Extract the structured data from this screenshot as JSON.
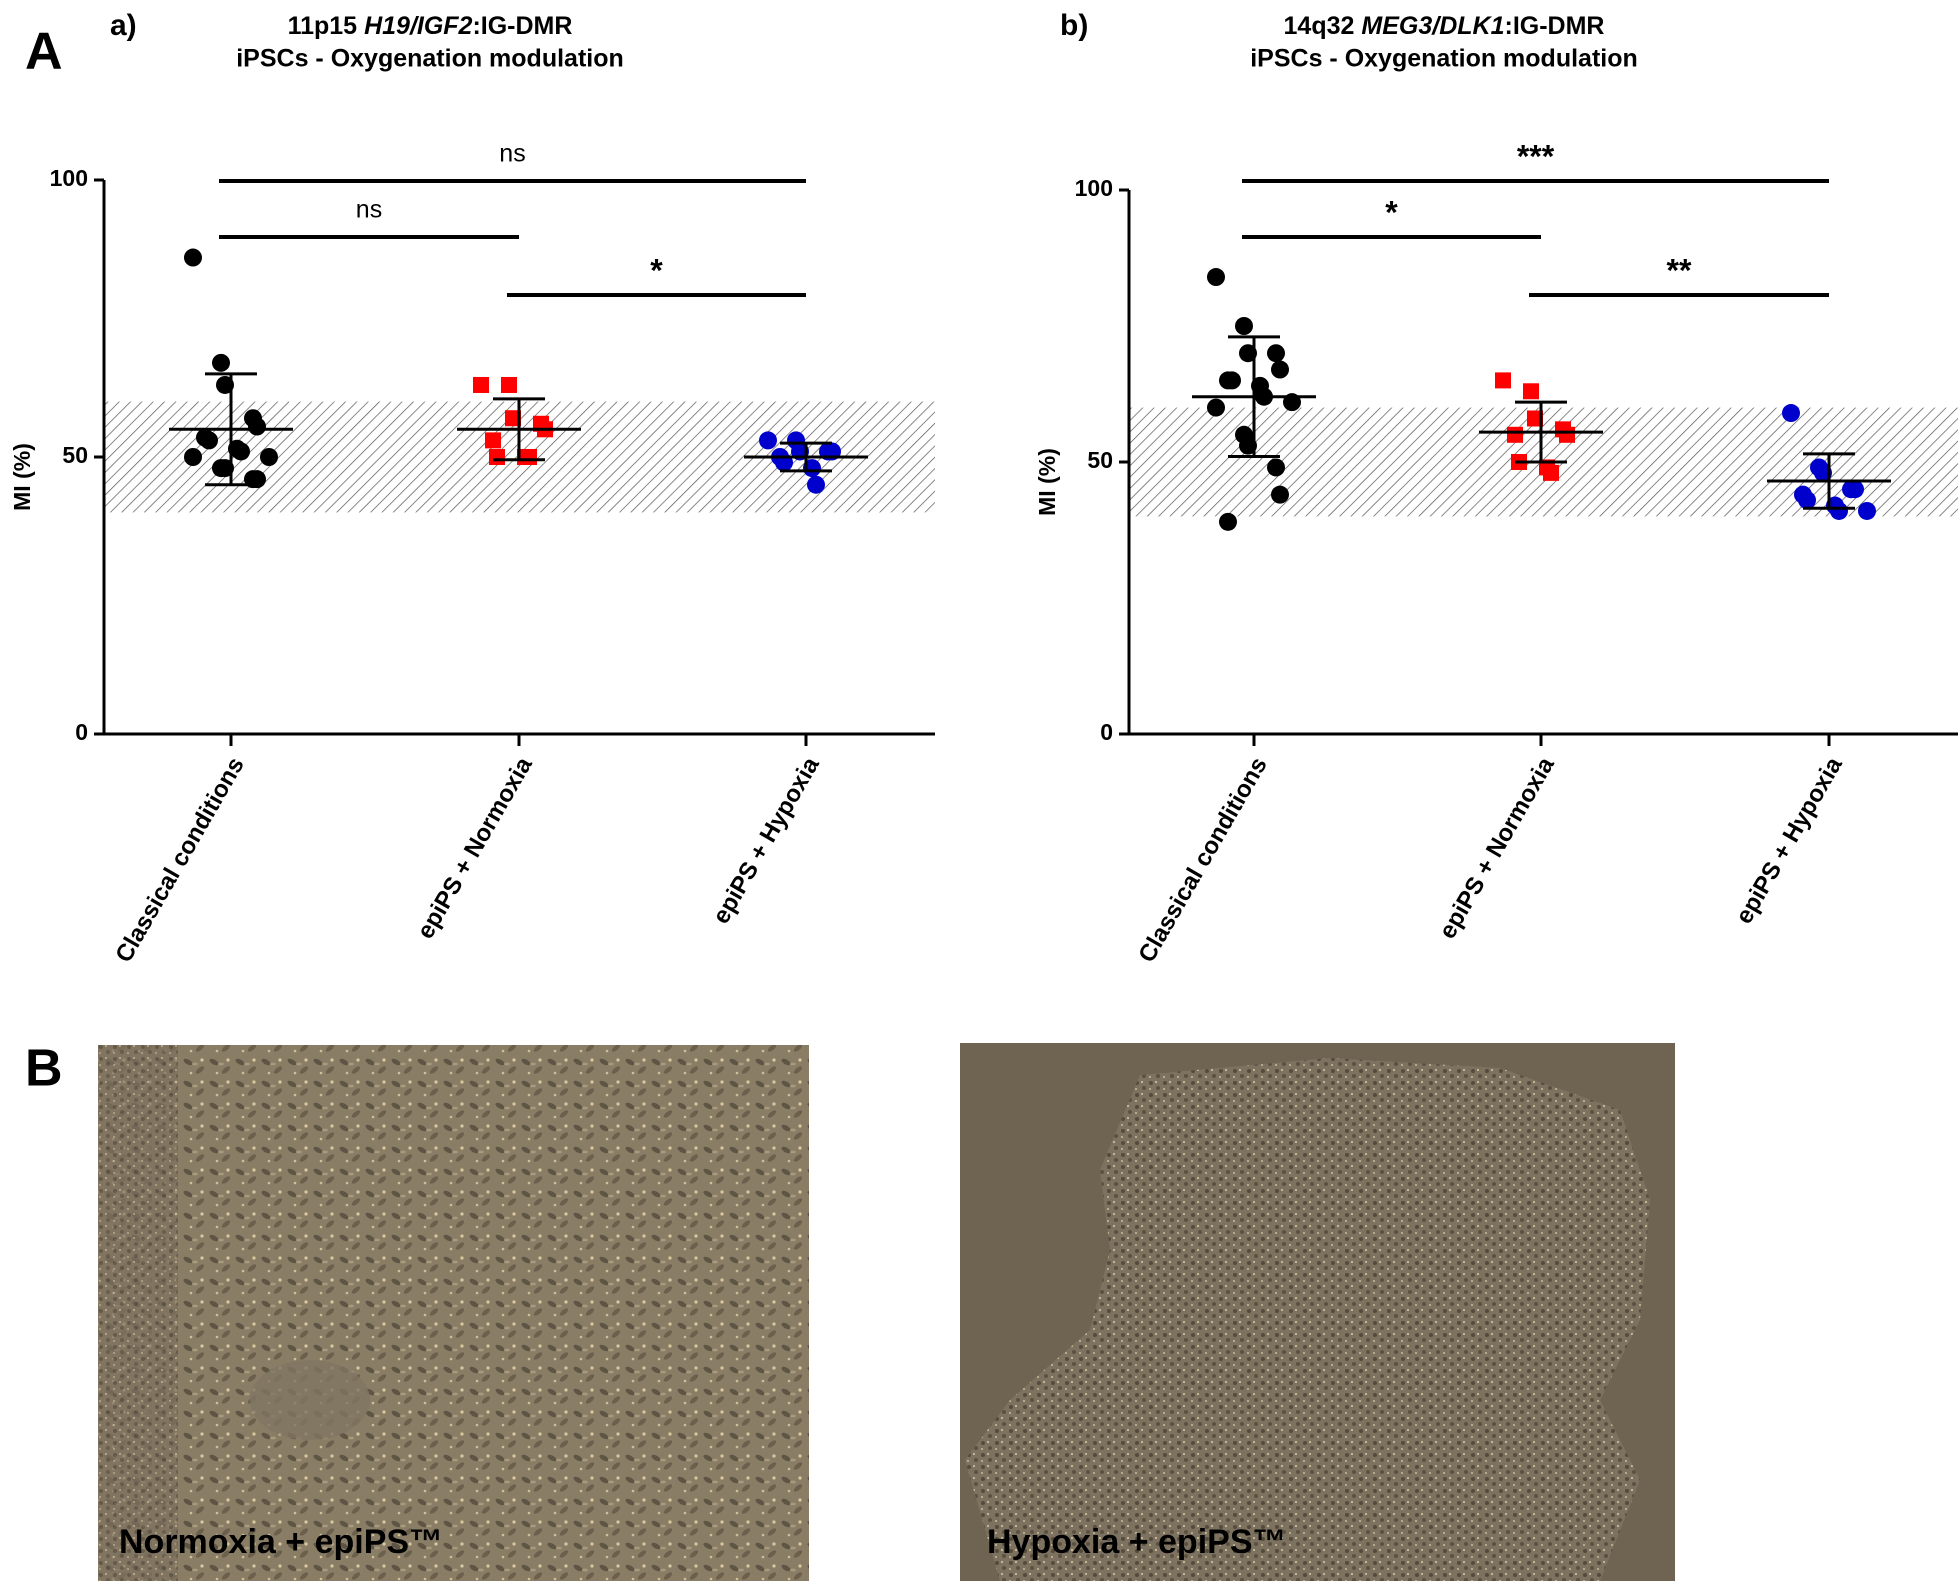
{
  "figure_labels": [
    "A",
    "B"
  ],
  "chart_data": [
    {
      "type": "dotplot",
      "panel": "a)",
      "title": [
        "11p15",
        "H19/IGF2",
        ":IG-DMR"
      ],
      "subtitle": "iPSCs - Oxygenation modulation",
      "ylabel": "MI (%)",
      "ylim": [
        0,
        100
      ],
      "yticks": [
        0,
        50,
        100
      ],
      "band": [
        40,
        60
      ],
      "categories": [
        "Classical conditions",
        "epiPS + Normoxia",
        "epiPS + Hypoxia"
      ],
      "groups": [
        {
          "color": "#000000",
          "marker": "circle",
          "values": [
            86,
            67,
            63,
            57,
            55.5,
            53.5,
            53,
            51.5,
            51,
            50,
            50,
            48,
            48,
            46,
            46
          ],
          "mean": 55,
          "sd": 10
        },
        {
          "color": "#ff0000",
          "marker": "square",
          "values": [
            63,
            63,
            57,
            56,
            55,
            53,
            50,
            50,
            50
          ],
          "mean": 55,
          "sd": 5.5
        },
        {
          "color": "#0000cc",
          "marker": "circle",
          "values": [
            53,
            53,
            51,
            51,
            51,
            50,
            49,
            48,
            45
          ],
          "mean": 50,
          "sd": 2.5
        }
      ],
      "comparisons": [
        {
          "from": 0,
          "to": 2,
          "label": "ns"
        },
        {
          "from": 0,
          "to": 1,
          "label": "ns"
        },
        {
          "from": 1,
          "to": 2,
          "label": "*"
        }
      ]
    },
    {
      "type": "dotplot",
      "panel": "b)",
      "title": [
        "14q32",
        "MEG3/DLK1",
        ":IG-DMR"
      ],
      "subtitle": "iPSCs - Oxygenation modulation",
      "ylabel": "MI (%)",
      "ylim": [
        0,
        100
      ],
      "yticks": [
        0,
        50,
        100
      ],
      "band": [
        40,
        60
      ],
      "categories": [
        "Classical conditions",
        "epiPS + Normoxia",
        "epiPS + Hypoxia"
      ],
      "groups": [
        {
          "color": "#000000",
          "marker": "circle",
          "values": [
            84,
            75,
            70,
            70,
            67,
            65,
            65,
            64,
            62,
            61,
            60,
            55,
            53,
            49,
            44,
            39
          ],
          "mean": 62,
          "sd": 11
        },
        {
          "color": "#ff0000",
          "marker": "square",
          "values": [
            65,
            63,
            58,
            56,
            55,
            55,
            50,
            49,
            48
          ],
          "mean": 55.5,
          "sd": 5.5
        },
        {
          "color": "#0000cc",
          "marker": "circle",
          "values": [
            59,
            49,
            48,
            45,
            45,
            44,
            43,
            42,
            41,
            41
          ],
          "mean": 46.5,
          "sd": 5
        }
      ],
      "comparisons": [
        {
          "from": 0,
          "to": 2,
          "label": "***"
        },
        {
          "from": 0,
          "to": 1,
          "label": "*"
        },
        {
          "from": 1,
          "to": 2,
          "label": "**"
        }
      ]
    }
  ],
  "images": [
    {
      "caption": "Normoxia + epiPS™"
    },
    {
      "caption": "Hypoxia + epiPS™"
    }
  ]
}
